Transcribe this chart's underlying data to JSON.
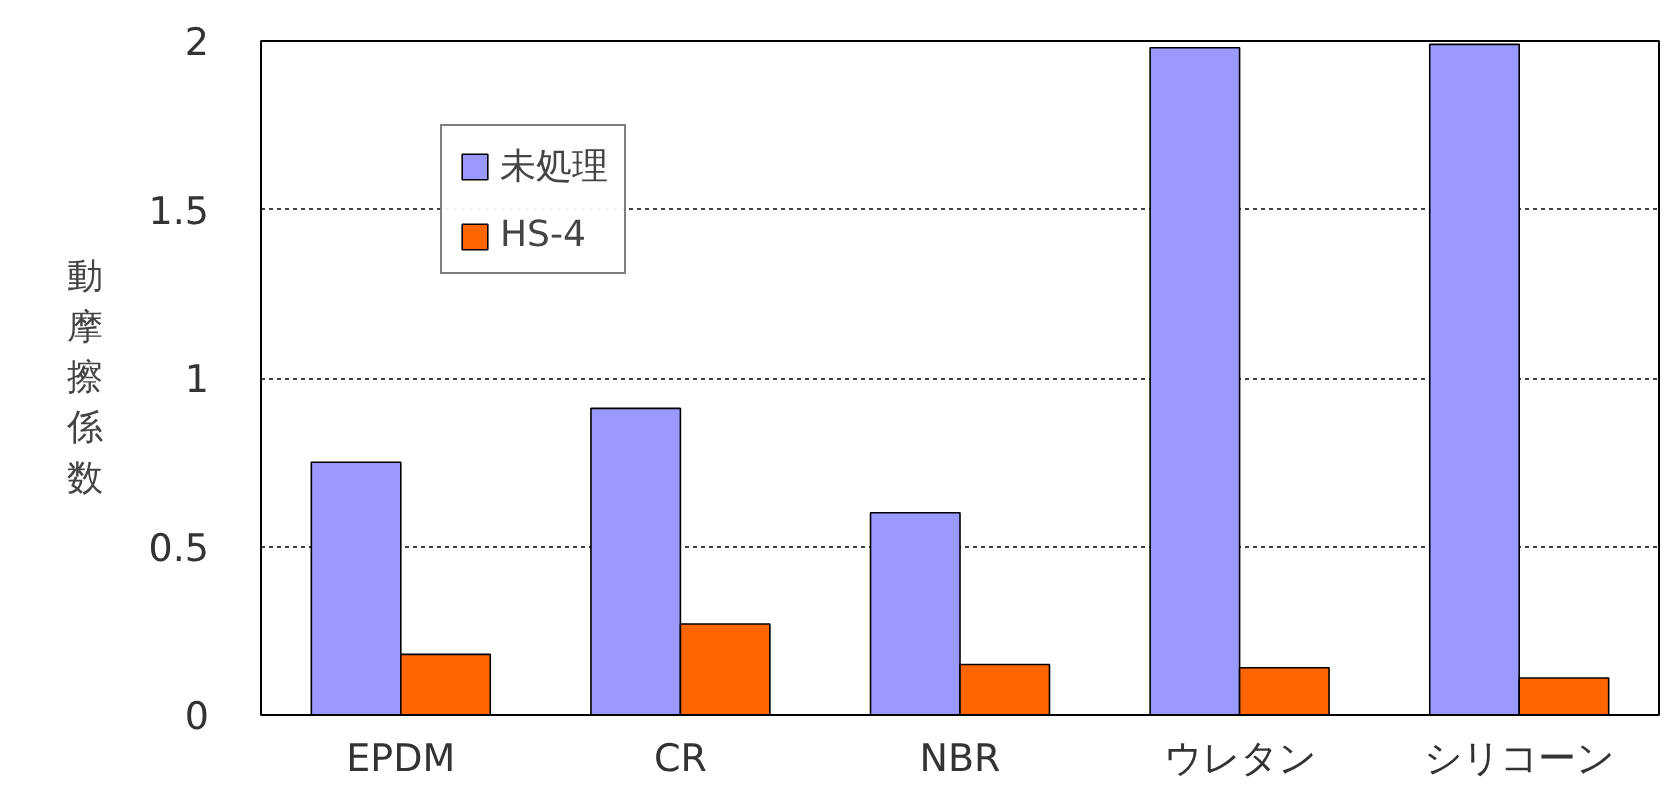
{
  "chart_data": {
    "type": "bar",
    "ylabel": "動摩擦係数",
    "categories": [
      "EPDM",
      "CR",
      "NBR",
      "ウレタン",
      "シリコーン"
    ],
    "series": [
      {
        "name": "未処理",
        "color": "#9999ff",
        "values": [
          0.75,
          0.91,
          0.6,
          1.98,
          1.99
        ]
      },
      {
        "name": "HS-4",
        "color": "#ff6600",
        "values": [
          0.18,
          0.27,
          0.15,
          0.14,
          0.11
        ]
      }
    ],
    "ylim": [
      0,
      2
    ],
    "yticks": [
      0,
      0.5,
      1,
      1.5,
      2
    ],
    "grid": "y",
    "legend": "top left"
  }
}
